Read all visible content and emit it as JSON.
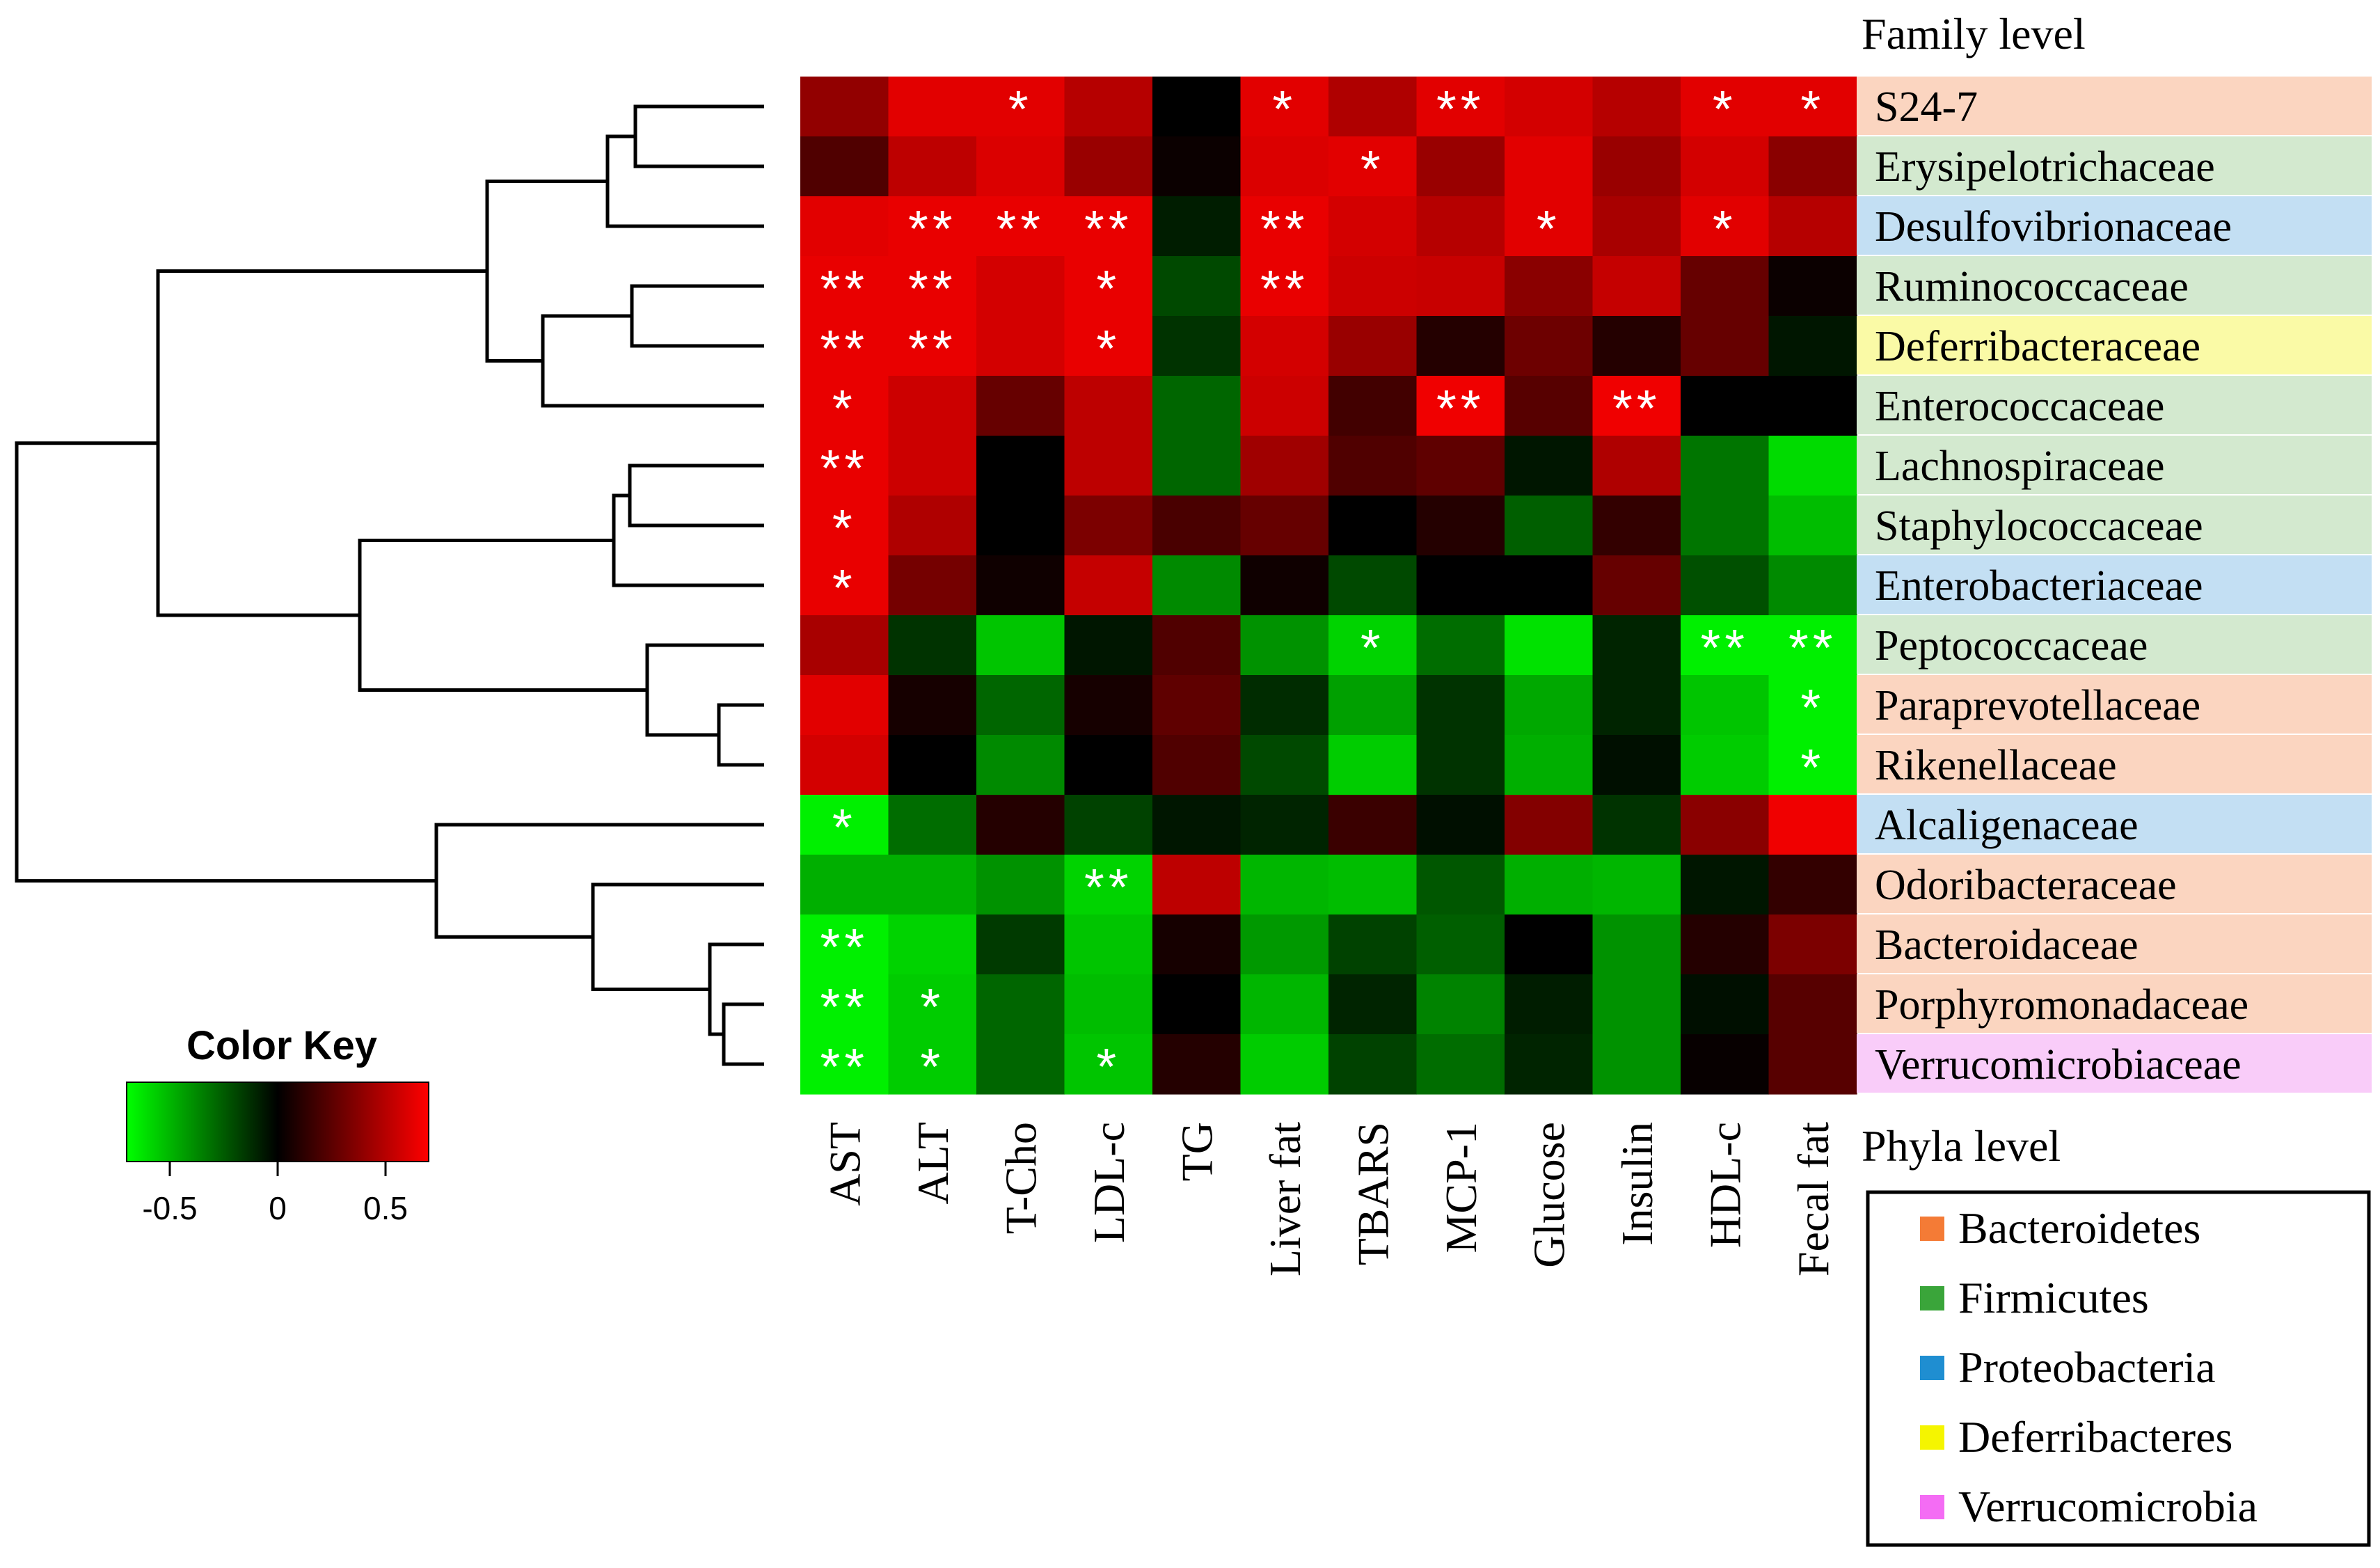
{
  "chart_data": {
    "type": "heatmap",
    "title": "",
    "rows_header": "Family level",
    "columns_header": "Phyla level",
    "columns": [
      "AST",
      "ALT",
      "T-Cho",
      "LDL-c",
      "TG",
      "Liver fat",
      "TBARS",
      "MCP-1",
      "Glucose",
      "Insulin",
      "HDL-c",
      "Fecal fat"
    ],
    "rows": [
      {
        "name": "S24-7",
        "phylum": "Bacteroidetes",
        "values": [
          0.4,
          0.62,
          0.62,
          0.5,
          0.0,
          0.62,
          0.48,
          0.62,
          0.58,
          0.5,
          0.62,
          0.62
        ],
        "sig": [
          "",
          "",
          "*",
          "",
          "",
          "*",
          "",
          "**",
          "",
          "",
          "*",
          "*"
        ]
      },
      {
        "name": "Erysipelotrichaceae",
        "phylum": "Firmicutes",
        "values": [
          0.22,
          0.52,
          0.6,
          0.42,
          0.03,
          0.6,
          0.62,
          0.42,
          0.62,
          0.42,
          0.58,
          0.38
        ],
        "sig": [
          "",
          "",
          "",
          "",
          "",
          "",
          "*",
          "",
          "",
          "",
          "",
          ""
        ]
      },
      {
        "name": "Desulfovibrionaceae",
        "phylum": "Proteobacteria",
        "values": [
          0.62,
          0.64,
          0.64,
          0.64,
          -0.08,
          0.64,
          0.58,
          0.5,
          0.62,
          0.46,
          0.62,
          0.5
        ],
        "sig": [
          "",
          "**",
          "**",
          "**",
          "",
          "**",
          "",
          "",
          "*",
          "",
          "*",
          ""
        ]
      },
      {
        "name": "Ruminococcaceae",
        "phylum": "Firmicutes",
        "values": [
          0.64,
          0.64,
          0.58,
          0.64,
          -0.2,
          0.64,
          0.56,
          0.55,
          0.38,
          0.54,
          0.28,
          0.03
        ],
        "sig": [
          "**",
          "**",
          "",
          "*",
          "",
          "**",
          "",
          "",
          "",
          "",
          "",
          ""
        ]
      },
      {
        "name": "Deferribacteraceae",
        "phylum": "Deferribacteres",
        "values": [
          0.64,
          0.64,
          0.58,
          0.64,
          -0.14,
          0.58,
          0.42,
          0.1,
          0.3,
          0.1,
          0.28,
          -0.06
        ],
        "sig": [
          "**",
          "**",
          "",
          "*",
          "",
          "",
          "",
          "",
          "",
          "",
          "",
          ""
        ]
      },
      {
        "name": "Enterococcaceae",
        "phylum": "Firmicutes",
        "values": [
          0.64,
          0.56,
          0.28,
          0.52,
          -0.28,
          0.56,
          0.18,
          0.66,
          0.24,
          0.66,
          0.0,
          0.0
        ],
        "sig": [
          "*",
          "",
          "",
          "",
          "",
          "",
          "",
          "**",
          "",
          "**",
          "",
          ""
        ]
      },
      {
        "name": "Lachnospiraceae",
        "phylum": "Firmicutes",
        "values": [
          0.64,
          0.56,
          0.0,
          0.52,
          -0.28,
          0.44,
          0.22,
          0.26,
          -0.06,
          0.48,
          -0.32,
          -0.6
        ],
        "sig": [
          "**",
          "",
          "",
          "",
          "",
          "",
          "",
          "",
          "",
          "",
          "",
          ""
        ]
      },
      {
        "name": "Staphylococcaceae",
        "phylum": "Firmicutes",
        "values": [
          0.64,
          0.48,
          0.0,
          0.34,
          0.2,
          0.28,
          0.0,
          0.1,
          -0.26,
          0.14,
          -0.32,
          -0.52
        ],
        "sig": [
          "*",
          "",
          "",
          "",
          "",
          "",
          "",
          "",
          "",
          "",
          "",
          ""
        ]
      },
      {
        "name": "Enterobacteriaceae",
        "phylum": "Proteobacteria",
        "values": [
          0.64,
          0.32,
          0.04,
          0.54,
          -0.38,
          0.04,
          -0.2,
          0.0,
          0.0,
          0.28,
          -0.22,
          -0.38
        ],
        "sig": [
          "*",
          "",
          "",
          "",
          "",
          "",
          "",
          "",
          "",
          "",
          "",
          ""
        ]
      },
      {
        "name": "Peptococcaceae",
        "phylum": "Firmicutes",
        "values": [
          0.46,
          -0.14,
          -0.54,
          -0.06,
          0.22,
          -0.4,
          -0.58,
          -0.3,
          -0.62,
          -0.1,
          -0.66,
          -0.66
        ],
        "sig": [
          "",
          "",
          "",
          "",
          "",
          "",
          "*",
          "",
          "",
          "",
          "**",
          "**"
        ]
      },
      {
        "name": "Paraprevotellaceae",
        "phylum": "Bacteroidetes",
        "values": [
          0.62,
          0.06,
          -0.28,
          0.06,
          0.26,
          -0.12,
          -0.44,
          -0.14,
          -0.46,
          -0.1,
          -0.54,
          -0.66
        ],
        "sig": [
          "",
          "",
          "",
          "",
          "",
          "",
          "",
          "",
          "",
          "",
          "",
          "*"
        ]
      },
      {
        "name": "Rikenellaceae",
        "phylum": "Bacteroidetes",
        "values": [
          0.58,
          0.0,
          -0.38,
          0.0,
          0.22,
          -0.2,
          -0.56,
          -0.14,
          -0.48,
          -0.04,
          -0.56,
          -0.66
        ],
        "sig": [
          "",
          "",
          "",
          "",
          "",
          "",
          "",
          "",
          "",
          "",
          "",
          "*"
        ]
      },
      {
        "name": "Alcaligenaceae",
        "phylum": "Proteobacteria",
        "values": [
          -0.66,
          -0.3,
          0.1,
          -0.18,
          -0.06,
          -0.1,
          0.16,
          -0.04,
          0.36,
          -0.14,
          0.38,
          0.66
        ],
        "sig": [
          "*",
          "",
          "",
          "",
          "",
          "",
          "",
          "",
          "",
          "",
          "",
          ""
        ]
      },
      {
        "name": "Odoribacteraceae",
        "phylum": "Bacteroidetes",
        "values": [
          -0.48,
          -0.48,
          -0.4,
          -0.58,
          0.52,
          -0.5,
          -0.52,
          -0.24,
          -0.48,
          -0.5,
          -0.06,
          0.14
        ],
        "sig": [
          "",
          "",
          "",
          "**",
          "",
          "",
          "",
          "",
          "",
          "",
          "",
          ""
        ]
      },
      {
        "name": "Bacteroidaceae",
        "phylum": "Bacteroidetes",
        "values": [
          -0.66,
          -0.58,
          -0.16,
          -0.54,
          0.06,
          -0.42,
          -0.18,
          -0.26,
          0.0,
          -0.4,
          0.1,
          0.34
        ],
        "sig": [
          "**",
          "",
          "",
          "",
          "",
          "",
          "",
          "",
          "",
          "",
          "",
          ""
        ]
      },
      {
        "name": "Porphyromonadaceae",
        "phylum": "Bacteroidetes",
        "values": [
          -0.66,
          -0.56,
          -0.28,
          -0.52,
          0.0,
          -0.5,
          -0.1,
          -0.36,
          -0.08,
          -0.4,
          -0.04,
          0.24
        ],
        "sig": [
          "**",
          "*",
          "",
          "",
          "",
          "",
          "",
          "",
          "",
          "",
          "",
          ""
        ]
      },
      {
        "name": "Verrucomicrobiaceae",
        "phylum": "Verrucomicrobia",
        "values": [
          -0.66,
          -0.56,
          -0.28,
          -0.54,
          0.1,
          -0.56,
          -0.18,
          -0.3,
          -0.1,
          -0.4,
          0.02,
          0.24
        ],
        "sig": [
          "**",
          "*",
          "",
          "*",
          "",
          "",
          "",
          "",
          "",
          "",
          "",
          ""
        ]
      }
    ],
    "color_key": {
      "title": "Color Key",
      "ticks": [
        -0.5,
        0,
        0.5
      ],
      "tick_labels": [
        "-0.5",
        "0",
        "0.5"
      ],
      "range": [
        -0.7,
        0.7
      ],
      "low_color": "#00ff00",
      "mid_color": "#000000",
      "high_color": "#ff0000"
    },
    "legend": {
      "placement": "bottom-right",
      "entries": [
        {
          "label": "Bacteroidetes",
          "swatch": "#f47b36",
          "row_bg": "#fbd5c0"
        },
        {
          "label": "Firmicutes",
          "swatch": "#3aa53a",
          "row_bg": "#d3e9cf"
        },
        {
          "label": "Proteobacteria",
          "swatch": "#1f8ed1",
          "row_bg": "#c3dff3"
        },
        {
          "label": "Deferribacteres",
          "swatch": "#f5f500",
          "row_bg": "#fafaa6"
        },
        {
          "label": "Verrucomicrobia",
          "swatch": "#f46cf4",
          "row_bg": "#f9ccf9"
        }
      ]
    }
  }
}
